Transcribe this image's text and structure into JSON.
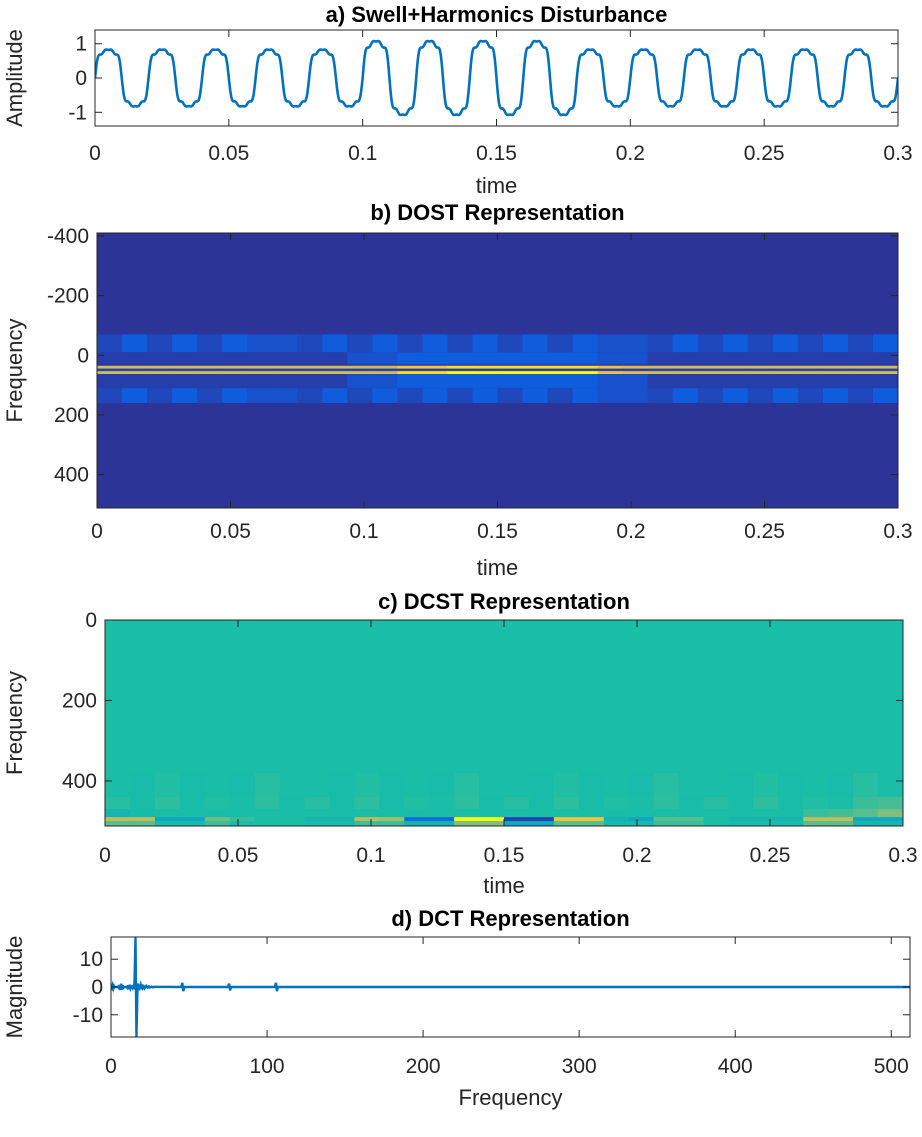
{
  "chart_data": [
    {
      "type": "line",
      "title": "a) Swell+Harmonics Disturbance",
      "xlabel": "time",
      "ylabel": "Amplitude",
      "xlim": [
        0,
        0.3
      ],
      "ylim": [
        -1.4,
        1.4
      ],
      "xticks": [
        "0",
        "0.05",
        "0.1",
        "0.15",
        "0.2",
        "0.25",
        "0.3"
      ],
      "xtick_values": [
        0,
        0.05,
        0.1,
        0.15,
        0.2,
        0.25,
        0.3
      ],
      "yticks": [
        "-1",
        "0",
        "1"
      ],
      "ytick_values": [
        -1,
        0,
        1
      ],
      "signal": {
        "fundamental_hz": 50,
        "harmonics": [
          {
            "order": 1,
            "amplitude": 0.95
          },
          {
            "order": 3,
            "amplitude": 0.18
          },
          {
            "order": 5,
            "amplitude": 0.1
          },
          {
            "order": 7,
            "amplitude": 0.05
          }
        ],
        "swell": {
          "start": 0.1,
          "end": 0.18,
          "gain": 1.3
        }
      },
      "color": "#0072BD",
      "grid": false
    },
    {
      "type": "heatmap",
      "title": "b) DOST Representation",
      "xlabel": "time",
      "ylabel": "Frequency",
      "xlim": [
        0,
        0.3
      ],
      "ylim": [
        -410,
        512
      ],
      "xticks": [
        "0",
        "0.05",
        "0.1",
        "0.15",
        "0.2",
        "0.25",
        "0.3"
      ],
      "xtick_values": [
        0,
        0.05,
        0.1,
        0.15,
        0.2,
        0.25,
        0.3
      ],
      "yticks": [
        "-400",
        "-200",
        "0",
        "200",
        "400"
      ],
      "ytick_values": [
        -400,
        -200,
        0,
        200,
        400
      ],
      "colormap": "parula",
      "background_value": 0.02,
      "bands": [
        {
          "freq": [
            -70,
            -10
          ],
          "values": [
            0.06,
            0.1,
            0.06,
            0.1,
            0.06,
            0.1,
            0.08,
            0.08,
            0.06,
            0.1,
            0.06,
            0.1,
            0.06,
            0.1,
            0.06,
            0.1,
            0.06,
            0.1,
            0.06,
            0.1,
            0.08,
            0.08,
            0.06,
            0.1,
            0.06,
            0.1,
            0.06,
            0.1,
            0.06,
            0.1,
            0.06,
            0.1
          ]
        },
        {
          "freq": [
            -10,
            30
          ],
          "values": [
            0.04,
            0.04,
            0.04,
            0.04,
            0.04,
            0.04,
            0.04,
            0.04,
            0.04,
            0.04,
            0.08,
            0.08,
            0.1,
            0.1,
            0.1,
            0.1,
            0.1,
            0.1,
            0.1,
            0.1,
            0.08,
            0.08,
            0.04,
            0.04,
            0.04,
            0.04,
            0.04,
            0.04,
            0.04,
            0.04,
            0.04,
            0.04
          ]
        },
        {
          "freq": [
            35,
            45
          ],
          "values": [
            0.82,
            0.82,
            0.82,
            0.82,
            0.82,
            0.82,
            0.82,
            0.82,
            0.82,
            0.82,
            0.82,
            0.82,
            0.9,
            0.9,
            0.95,
            0.95,
            0.95,
            0.95,
            0.95,
            0.95,
            0.88,
            0.85,
            0.82,
            0.82,
            0.82,
            0.82,
            0.82,
            0.82,
            0.82,
            0.82,
            0.82,
            0.82
          ]
        },
        {
          "freq": [
            45,
            53
          ],
          "values": [
            0.05,
            0.05,
            0.05,
            0.05,
            0.05,
            0.05,
            0.05,
            0.05,
            0.05,
            0.05,
            0.05,
            0.05,
            0.05,
            0.05,
            0.05,
            0.05,
            0.05,
            0.05,
            0.05,
            0.05,
            0.05,
            0.05,
            0.05,
            0.05,
            0.05,
            0.05,
            0.05,
            0.05,
            0.05,
            0.05,
            0.05,
            0.05
          ]
        },
        {
          "freq": [
            53,
            63
          ],
          "values": [
            0.82,
            0.82,
            0.82,
            0.82,
            0.82,
            0.82,
            0.82,
            0.82,
            0.82,
            0.82,
            0.82,
            0.82,
            0.95,
            0.95,
            1.0,
            1.0,
            1.0,
            1.0,
            1.0,
            1.0,
            0.88,
            0.85,
            0.82,
            0.82,
            0.82,
            0.82,
            0.82,
            0.82,
            0.82,
            0.82,
            0.82,
            0.82
          ]
        },
        {
          "freq": [
            63,
            110
          ],
          "values": [
            0.04,
            0.04,
            0.04,
            0.04,
            0.04,
            0.04,
            0.04,
            0.04,
            0.04,
            0.04,
            0.08,
            0.08,
            0.1,
            0.1,
            0.1,
            0.1,
            0.1,
            0.1,
            0.1,
            0.1,
            0.08,
            0.08,
            0.04,
            0.04,
            0.04,
            0.04,
            0.04,
            0.04,
            0.04,
            0.04,
            0.04,
            0.04
          ]
        },
        {
          "freq": [
            110,
            160
          ],
          "values": [
            0.06,
            0.1,
            0.06,
            0.1,
            0.06,
            0.1,
            0.08,
            0.08,
            0.06,
            0.1,
            0.06,
            0.1,
            0.06,
            0.1,
            0.06,
            0.1,
            0.06,
            0.1,
            0.06,
            0.1,
            0.08,
            0.08,
            0.06,
            0.1,
            0.06,
            0.1,
            0.06,
            0.1,
            0.06,
            0.1,
            0.06,
            0.1
          ]
        }
      ]
    },
    {
      "type": "heatmap",
      "title": "c) DCST Representation",
      "xlabel": "time",
      "ylabel": "Frequency",
      "xlim": [
        0,
        0.3
      ],
      "ylim": [
        0,
        512
      ],
      "xticks": [
        "0",
        "0.05",
        "0.1",
        "0.15",
        "0.2",
        "0.25",
        "0.3"
      ],
      "xtick_values": [
        0,
        0.05,
        0.1,
        0.15,
        0.2,
        0.25,
        0.3
      ],
      "yticks": [
        "0",
        "200",
        "400"
      ],
      "ytick_values": [
        0,
        200,
        400
      ],
      "colormap": "parula",
      "background_value": 0.55,
      "bands": [
        {
          "freq": [
            380,
            440
          ],
          "values": [
            0.55,
            0.52,
            0.56,
            0.53,
            0.55,
            0.51,
            0.57,
            0.54,
            0.55,
            0.52,
            0.56,
            0.53,
            0.55,
            0.51,
            0.57,
            0.54,
            0.55,
            0.52,
            0.56,
            0.53,
            0.55,
            0.51,
            0.57,
            0.54,
            0.55,
            0.52,
            0.56,
            0.53,
            0.55,
            0.51,
            0.57,
            0.54
          ]
        },
        {
          "freq": [
            440,
            470
          ],
          "values": [
            0.57,
            0.53,
            0.58,
            0.52,
            0.56,
            0.54,
            0.58,
            0.52,
            0.57,
            0.53,
            0.58,
            0.52,
            0.56,
            0.54,
            0.58,
            0.52,
            0.57,
            0.53,
            0.58,
            0.52,
            0.56,
            0.54,
            0.58,
            0.52,
            0.57,
            0.53,
            0.58,
            0.52,
            0.56,
            0.54,
            0.6,
            0.62
          ]
        },
        {
          "freq": [
            470,
            490
          ],
          "values": [
            0.45,
            0.5,
            0.55,
            0.55,
            0.55,
            0.55,
            0.55,
            0.55,
            0.55,
            0.55,
            0.55,
            0.55,
            0.55,
            0.55,
            0.55,
            0.55,
            0.55,
            0.55,
            0.55,
            0.55,
            0.55,
            0.55,
            0.55,
            0.55,
            0.55,
            0.55,
            0.55,
            0.55,
            0.6,
            0.62,
            0.65,
            0.7
          ]
        },
        {
          "freq": [
            490,
            500
          ],
          "values": [
            0.8,
            0.8,
            0.35,
            0.35,
            0.68,
            0.6,
            0.55,
            0.55,
            0.45,
            0.45,
            0.78,
            0.75,
            0.15,
            0.15,
            1.0,
            1.0,
            0.05,
            0.05,
            0.9,
            0.9,
            0.4,
            0.35,
            0.65,
            0.65,
            0.55,
            0.45,
            0.45,
            0.45,
            0.8,
            0.8,
            0.35,
            0.35
          ]
        },
        {
          "freq": [
            500,
            512
          ],
          "values": [
            0.65,
            0.65,
            0.5,
            0.5,
            0.6,
            0.55,
            0.55,
            0.55,
            0.5,
            0.5,
            0.6,
            0.6,
            0.4,
            0.4,
            0.7,
            0.7,
            0.35,
            0.35,
            0.65,
            0.65,
            0.5,
            0.5,
            0.6,
            0.6,
            0.55,
            0.5,
            0.5,
            0.5,
            0.65,
            0.65,
            0.45,
            0.45
          ]
        }
      ]
    },
    {
      "type": "line",
      "title": "d) DCT Representation",
      "xlabel": "Frequency",
      "ylabel": "Magnitude",
      "xlim": [
        0,
        512
      ],
      "ylim": [
        -18,
        18
      ],
      "xticks": [
        "0",
        "100",
        "200",
        "300",
        "400",
        "500"
      ],
      "xtick_values": [
        0,
        100,
        200,
        300,
        400,
        500
      ],
      "yticks": [
        "-10",
        "0",
        "10"
      ],
      "ytick_values": [
        -10,
        0,
        10
      ],
      "baseline": 0,
      "peaks": [
        {
          "x": 16,
          "min": -18,
          "max": 18
        },
        {
          "x": 46,
          "min": -1.5,
          "max": 1.5
        },
        {
          "x": 76,
          "min": -1.2,
          "max": 1.2
        },
        {
          "x": 106,
          "min": -1.5,
          "max": 1.5
        }
      ],
      "low_frequency_noise": {
        "x": [
          0,
          15
        ],
        "amplitude": 1.2
      },
      "color": "#0072BD",
      "grid": false
    }
  ]
}
